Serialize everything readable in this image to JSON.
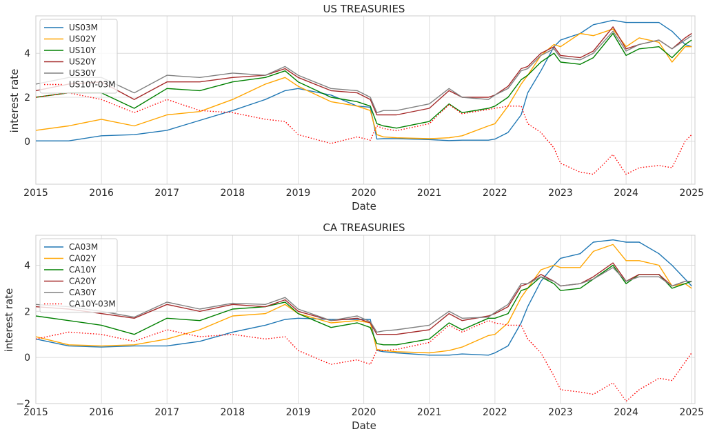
{
  "chart_data": [
    {
      "type": "line",
      "title": "US TREASURIES",
      "xlabel": "Date",
      "ylabel": "interest rate",
      "xlim": [
        2015.0,
        2025.05
      ],
      "ylim": [
        -1.95,
        5.7
      ],
      "xticks": [
        "2015",
        "2016",
        "2017",
        "2018",
        "2019",
        "2020",
        "2021",
        "2022",
        "2023",
        "2024",
        "2025"
      ],
      "yticks": [
        "0",
        "2",
        "4"
      ],
      "grid": true,
      "legend_position": "top-left",
      "x": [
        2015.0,
        2015.5,
        2016.0,
        2016.5,
        2017.0,
        2017.5,
        2018.0,
        2018.5,
        2018.8,
        2019.0,
        2019.5,
        2019.9,
        2020.1,
        2020.2,
        2020.3,
        2020.5,
        2021.0,
        2021.3,
        2021.5,
        2021.9,
        2022.0,
        2022.2,
        2022.4,
        2022.5,
        2022.7,
        2022.9,
        2023.0,
        2023.3,
        2023.5,
        2023.8,
        2024.0,
        2024.2,
        2024.5,
        2024.7,
        2024.9,
        2025.0
      ],
      "series": [
        {
          "name": "US03M",
          "color": "#1f77b4",
          "style": "solid",
          "values": [
            0.02,
            0.02,
            0.25,
            0.3,
            0.5,
            0.95,
            1.4,
            1.9,
            2.3,
            2.4,
            2.1,
            1.6,
            1.55,
            0.1,
            0.12,
            0.12,
            0.08,
            0.03,
            0.05,
            0.05,
            0.1,
            0.4,
            1.2,
            2.2,
            3.2,
            4.3,
            4.6,
            4.9,
            5.3,
            5.5,
            5.4,
            5.4,
            5.4,
            5.0,
            4.4,
            4.3
          ]
        },
        {
          "name": "US02Y",
          "color": "#ffa500",
          "style": "solid",
          "values": [
            0.5,
            0.7,
            1.0,
            0.7,
            1.2,
            1.35,
            1.9,
            2.6,
            2.9,
            2.5,
            1.8,
            1.6,
            1.4,
            0.3,
            0.2,
            0.16,
            0.12,
            0.16,
            0.25,
            0.7,
            0.8,
            1.6,
            2.6,
            3.0,
            3.9,
            4.4,
            4.3,
            4.9,
            4.8,
            5.1,
            4.3,
            4.7,
            4.5,
            3.6,
            4.3,
            4.3
          ]
        },
        {
          "name": "US10Y",
          "color": "#008000",
          "style": "solid",
          "values": [
            2.0,
            2.2,
            2.2,
            1.5,
            2.4,
            2.3,
            2.7,
            2.9,
            3.2,
            2.7,
            2.0,
            1.8,
            1.6,
            0.8,
            0.7,
            0.6,
            0.9,
            1.7,
            1.3,
            1.5,
            1.6,
            2.0,
            2.8,
            3.0,
            3.6,
            4.0,
            3.6,
            3.5,
            3.8,
            4.9,
            3.9,
            4.2,
            4.3,
            3.8,
            4.4,
            4.6
          ]
        },
        {
          "name": "US20Y",
          "color": "#a52a2a",
          "style": "solid",
          "values": [
            2.3,
            2.6,
            2.7,
            1.9,
            2.7,
            2.7,
            2.9,
            3.0,
            3.3,
            2.9,
            2.3,
            2.2,
            1.9,
            1.2,
            1.2,
            1.2,
            1.5,
            2.3,
            2.0,
            2.0,
            2.1,
            2.5,
            3.3,
            3.4,
            4.0,
            4.3,
            3.9,
            3.8,
            4.1,
            5.2,
            4.2,
            4.4,
            4.6,
            4.2,
            4.7,
            4.9
          ]
        },
        {
          "name": "US30Y",
          "color": "#808080",
          "style": "solid",
          "values": [
            2.6,
            2.9,
            2.9,
            2.2,
            3.0,
            2.9,
            3.1,
            3.0,
            3.4,
            3.0,
            2.4,
            2.3,
            2.0,
            1.3,
            1.4,
            1.4,
            1.7,
            2.4,
            2.0,
            1.9,
            2.1,
            2.4,
            3.2,
            3.3,
            3.9,
            4.2,
            3.8,
            3.7,
            4.0,
            5.0,
            4.1,
            4.4,
            4.6,
            4.2,
            4.6,
            4.8
          ]
        },
        {
          "name": "US10Y-03M",
          "color": "#ff0000",
          "style": "dotted",
          "values": [
            2.0,
            2.2,
            1.9,
            1.3,
            1.9,
            1.4,
            1.3,
            1.0,
            0.9,
            0.3,
            -0.1,
            0.2,
            0.05,
            0.7,
            0.58,
            0.48,
            0.8,
            1.67,
            1.25,
            1.45,
            1.5,
            1.6,
            1.6,
            0.8,
            0.4,
            -0.3,
            -1.0,
            -1.4,
            -1.5,
            -0.6,
            -1.5,
            -1.2,
            -1.1,
            -1.2,
            0.0,
            0.3
          ]
        }
      ]
    },
    {
      "type": "line",
      "title": "CA TREASURIES",
      "xlabel": "Date",
      "ylabel": "interest rate",
      "xlim": [
        2015.0,
        2025.05
      ],
      "ylim": [
        -2.0,
        5.3
      ],
      "xticks": [
        "2015",
        "2016",
        "2017",
        "2018",
        "2019",
        "2020",
        "2021",
        "2022",
        "2023",
        "2024",
        "2025"
      ],
      "yticks": [
        "−2",
        "0",
        "2",
        "4"
      ],
      "grid": true,
      "legend_position": "top-left",
      "x": [
        2015.0,
        2015.5,
        2016.0,
        2016.5,
        2017.0,
        2017.5,
        2018.0,
        2018.5,
        2018.8,
        2019.0,
        2019.5,
        2019.9,
        2020.1,
        2020.2,
        2020.3,
        2020.5,
        2021.0,
        2021.3,
        2021.5,
        2021.9,
        2022.0,
        2022.2,
        2022.4,
        2022.5,
        2022.7,
        2022.9,
        2023.0,
        2023.3,
        2023.5,
        2023.8,
        2024.0,
        2024.2,
        2024.5,
        2024.7,
        2024.9,
        2025.0
      ],
      "series": [
        {
          "name": "CA03M",
          "color": "#1f77b4",
          "style": "solid",
          "values": [
            0.8,
            0.5,
            0.45,
            0.5,
            0.5,
            0.7,
            1.1,
            1.4,
            1.65,
            1.7,
            1.65,
            1.65,
            1.65,
            0.3,
            0.25,
            0.2,
            0.1,
            0.1,
            0.15,
            0.1,
            0.2,
            0.5,
            1.5,
            2.2,
            3.3,
            4.0,
            4.3,
            4.5,
            5.0,
            5.1,
            5.0,
            5.0,
            4.5,
            4.0,
            3.4,
            3.1
          ]
        },
        {
          "name": "CA02Y",
          "color": "#ffa500",
          "style": "solid",
          "values": [
            0.9,
            0.55,
            0.5,
            0.55,
            0.8,
            1.2,
            1.8,
            1.9,
            2.3,
            1.9,
            1.5,
            1.6,
            1.5,
            0.35,
            0.3,
            0.25,
            0.2,
            0.3,
            0.45,
            0.95,
            1.0,
            1.5,
            2.6,
            3.0,
            3.8,
            4.0,
            3.9,
            3.9,
            4.6,
            4.9,
            4.2,
            4.2,
            4.0,
            3.1,
            3.2,
            3.0
          ]
        },
        {
          "name": "CA10Y",
          "color": "#008000",
          "style": "solid",
          "values": [
            1.8,
            1.6,
            1.4,
            1.0,
            1.7,
            1.6,
            2.1,
            2.2,
            2.4,
            1.9,
            1.3,
            1.5,
            1.3,
            0.6,
            0.55,
            0.55,
            0.8,
            1.5,
            1.2,
            1.7,
            1.7,
            1.9,
            2.9,
            3.0,
            3.5,
            3.2,
            2.9,
            3.0,
            3.4,
            4.0,
            3.2,
            3.6,
            3.6,
            3.0,
            3.2,
            3.3
          ]
        },
        {
          "name": "CA20Y",
          "color": "#a52a2a",
          "style": "solid",
          "values": [
            2.2,
            2.1,
            1.9,
            1.7,
            2.3,
            2.0,
            2.3,
            2.2,
            2.5,
            2.0,
            1.6,
            1.7,
            1.5,
            1.0,
            1.0,
            1.0,
            1.2,
            1.9,
            1.6,
            1.8,
            1.9,
            2.2,
            3.1,
            3.2,
            3.6,
            3.3,
            3.1,
            3.2,
            3.5,
            4.1,
            3.3,
            3.6,
            3.6,
            3.1,
            3.3,
            3.3
          ]
        },
        {
          "name": "CA30Y",
          "color": "#808080",
          "style": "solid",
          "values": [
            2.3,
            2.2,
            2.0,
            1.75,
            2.4,
            2.1,
            2.35,
            2.3,
            2.6,
            2.1,
            1.6,
            1.8,
            1.55,
            1.1,
            1.15,
            1.2,
            1.4,
            2.0,
            1.7,
            1.75,
            1.95,
            2.3,
            3.2,
            3.2,
            3.5,
            3.3,
            3.1,
            3.2,
            3.4,
            3.9,
            3.3,
            3.5,
            3.5,
            3.1,
            3.3,
            3.3
          ]
        },
        {
          "name": "CA10Y-03M",
          "color": "#ff0000",
          "style": "dotted",
          "values": [
            0.8,
            1.1,
            1.0,
            0.7,
            1.2,
            0.9,
            1.0,
            0.8,
            0.9,
            0.3,
            -0.3,
            -0.1,
            -0.3,
            0.3,
            0.3,
            0.35,
            0.65,
            1.4,
            1.1,
            1.6,
            1.5,
            1.4,
            1.4,
            0.8,
            0.2,
            -0.8,
            -1.4,
            -1.5,
            -1.6,
            -1.1,
            -1.9,
            -1.4,
            -0.9,
            -1.0,
            -0.2,
            0.2
          ]
        }
      ]
    }
  ]
}
